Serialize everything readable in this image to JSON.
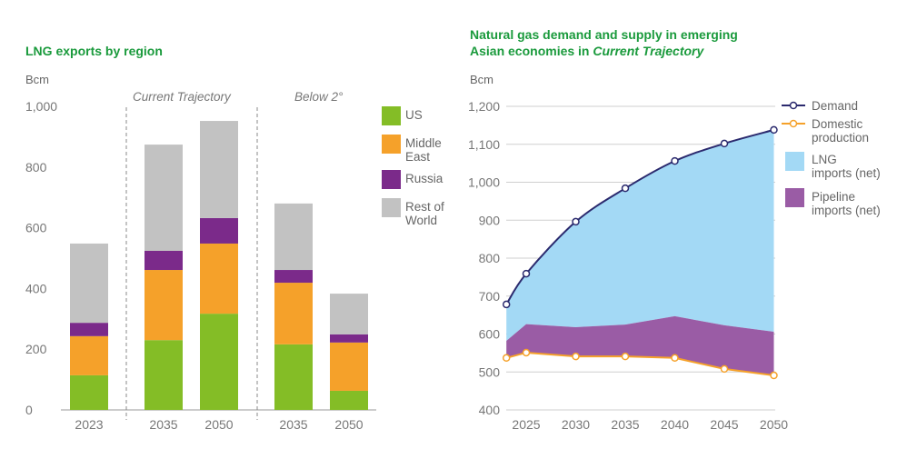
{
  "chart_data": [
    {
      "type": "bar",
      "stacked": true,
      "title": "LNG exports by region",
      "ylabel": "Bcm",
      "ylim": [
        0,
        1000
      ],
      "yticks": [
        "0",
        "200",
        "400",
        "600",
        "800",
        "1,000"
      ],
      "groups": [
        {
          "label": "",
          "categories": [
            "2023"
          ]
        },
        {
          "label": "Current Trajectory",
          "categories": [
            "2035",
            "2050"
          ]
        },
        {
          "label": "Below 2°",
          "categories": [
            "2035",
            "2050"
          ]
        }
      ],
      "categories": [
        "2023",
        "2035",
        "2050",
        "2035",
        "2050"
      ],
      "series": [
        {
          "name": "US",
          "color": "#84bd26",
          "values": [
            114,
            230,
            317,
            216,
            63
          ]
        },
        {
          "name": "Middle East",
          "color": "#f5a12a",
          "values": [
            129,
            231,
            231,
            203,
            159
          ]
        },
        {
          "name": "Russia",
          "color": "#7b2a8a",
          "values": [
            44,
            63,
            84,
            42,
            27
          ]
        },
        {
          "name": "Rest of World",
          "color": "#c2c2c2",
          "values": [
            261,
            350,
            320,
            219,
            134
          ]
        }
      ],
      "legend": "right",
      "grid": false
    },
    {
      "type": "area",
      "title_parts": [
        "Natural gas demand and supply in emerging",
        "Asian economies in ",
        "Current Trajectory"
      ],
      "ylabel": "Bcm",
      "ylim": [
        400,
        1200
      ],
      "yticks": [
        "400",
        "500",
        "600",
        "700",
        "800",
        "900",
        "1,000",
        "1,100",
        "1,200"
      ],
      "xticks": [
        "2025",
        "2030",
        "2035",
        "2040",
        "2045",
        "2050"
      ],
      "x": [
        2023,
        2025,
        2030,
        2035,
        2040,
        2045,
        2050
      ],
      "demand": {
        "name": "Demand",
        "color": "#2b2a6e",
        "values": [
          678,
          759,
          896,
          984,
          1056,
          1102,
          1138
        ]
      },
      "domestic": {
        "name": "Domestic production",
        "name_lines": [
          "Domestic",
          "production"
        ],
        "color": "#f5a12a",
        "values": [
          537,
          551,
          541,
          541,
          537,
          508,
          491
        ]
      },
      "pipeline_top": [
        582,
        626,
        618,
        625,
        647,
        623,
        606
      ],
      "lng": {
        "name": "LNG imports (net)",
        "name_lines": [
          "LNG",
          "imports (net)"
        ],
        "color": "#a3d9f5"
      },
      "pipeline": {
        "name": "Pipeline imports (net)",
        "name_lines": [
          "Pipeline",
          "imports (net)"
        ],
        "color": "#9a5ca5"
      },
      "legend": "right",
      "grid": true
    }
  ]
}
